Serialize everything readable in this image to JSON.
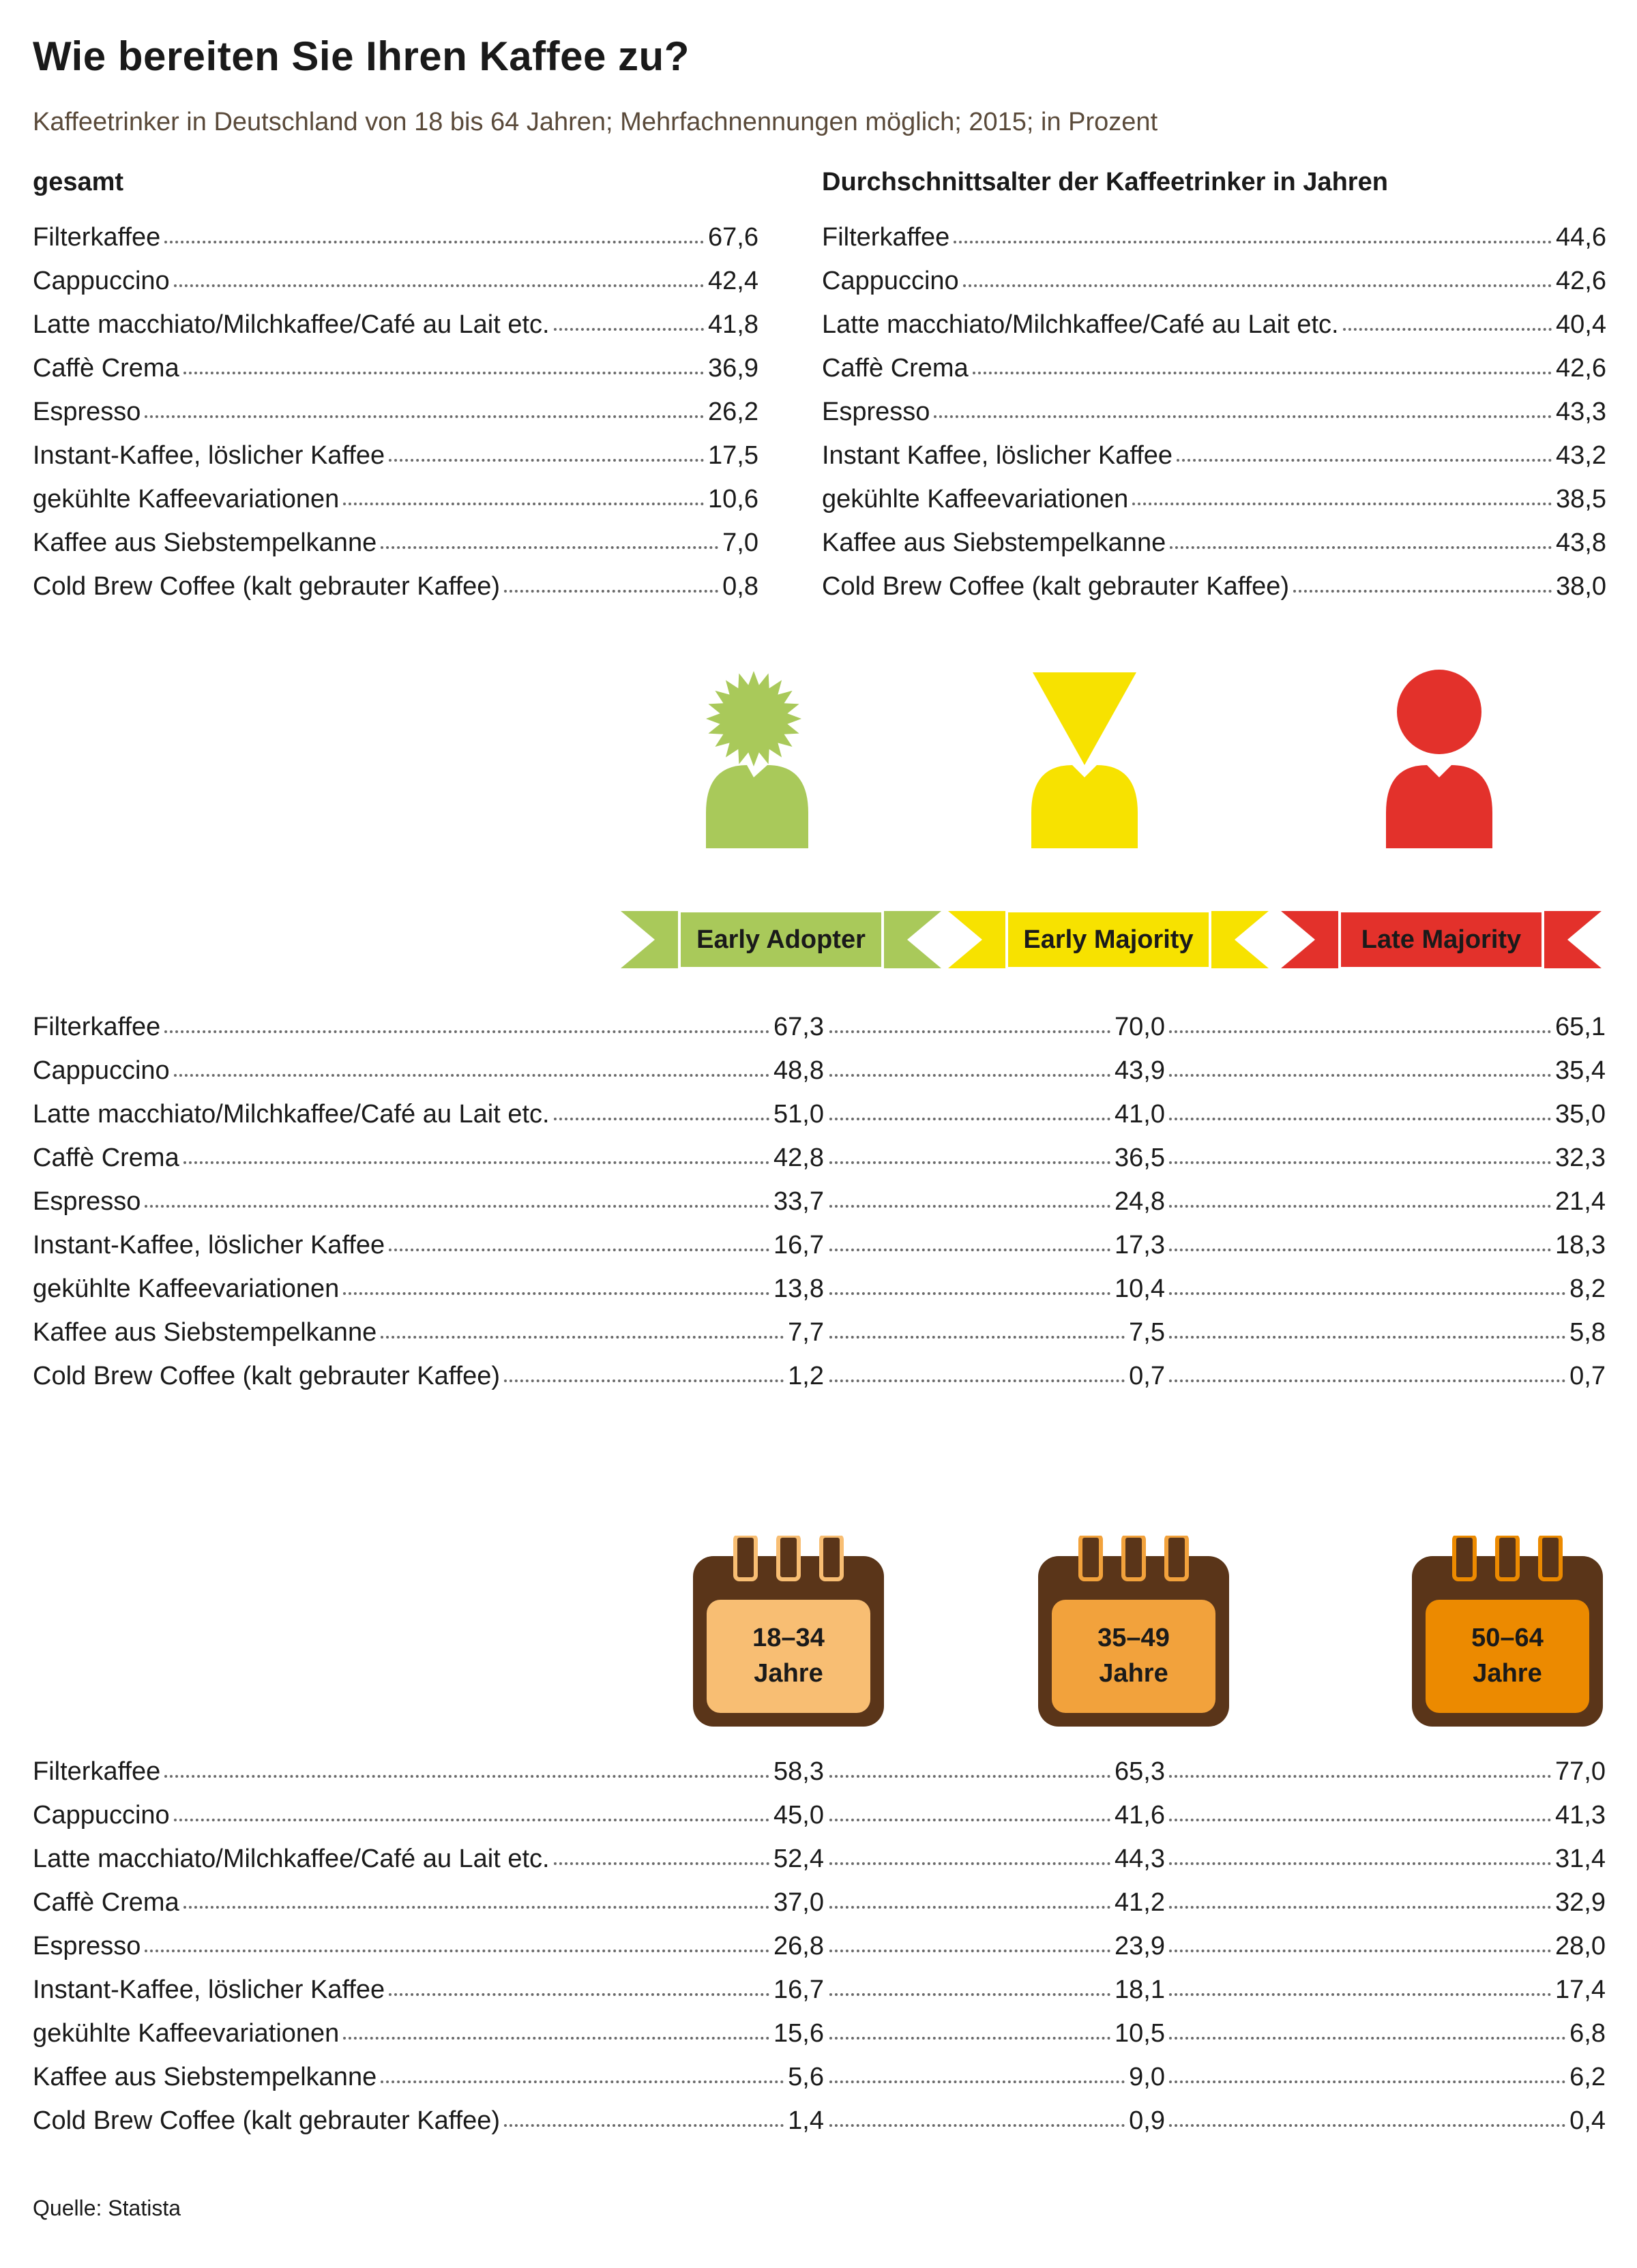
{
  "title": "Wie bereiten Sie Ihren Kaffee zu?",
  "subtitle": "Kaffeetrinker in Deutschland von 18 bis 64 Jahren; Mehrfachnennungen möglich; 2015; in Prozent",
  "left_heading": "gesamt",
  "right_heading": "Durchschnittsalter der Kaffeetrinker in Jahren",
  "labels": [
    "Filterkaffee",
    "Cappuccino",
    "Latte macchiato/Milchkaffee/Café au Lait etc.",
    "Caffè Crema ",
    "Espresso",
    "Instant-Kaffee, löslicher Kaffee",
    "gekühlte Kaffeevariationen",
    "Kaffee aus Siebstempelkanne",
    "Cold Brew Coffee (kalt gebrauter Kaffee)"
  ],
  "labels_right": [
    "Filterkaffee",
    "Cappuccino",
    "Latte macchiato/Milchkaffee/Café au Lait etc.",
    "Caffè Crema ",
    "Espresso",
    "Instant Kaffee, löslicher Kaffee",
    "gekühlte Kaffeevariationen",
    "Kaffee aus Siebstempelkanne",
    "Cold Brew Coffee (kalt gebrauter Kaffee)"
  ],
  "gesamt": [
    "67,6",
    "42,4",
    "41,8",
    "36,9",
    "26,2",
    "17,5",
    "10,6",
    "7,0",
    "0,8"
  ],
  "durchschnittsalter": [
    "44,6",
    "42,6",
    "40,4",
    "42,6",
    "43,3",
    "43,2",
    "38,5",
    "43,8",
    "38,0"
  ],
  "segments": {
    "early_adopter": {
      "label": "Early Adopter",
      "color": "#a9c95a",
      "values": [
        "67,3",
        "48,8",
        "51,0",
        "42,8",
        "33,7",
        "16,7",
        "13,8",
        "7,7",
        "1,2"
      ]
    },
    "early_majority": {
      "label": "Early Majority",
      "color": "#f7e200",
      "values": [
        "70,0",
        "43,9",
        "41,0",
        "36,5",
        "24,8",
        "17,3",
        "10,4",
        "7,5",
        "0,7"
      ]
    },
    "late_majority": {
      "label": "Late Majority",
      "color": "#e3312b",
      "values": [
        "65,1",
        "35,4",
        "35,0",
        "32,3",
        "21,4",
        "18,3",
        "8,2",
        "5,8",
        "0,7"
      ]
    }
  },
  "age_groups": {
    "a18_34": {
      "label_line1": "18–34",
      "label_line2": "Jahre",
      "color": "#f8be73",
      "values": [
        "58,3",
        "45,0",
        "52,4",
        "37,0",
        "26,8",
        "16,7",
        "15,6",
        "5,6",
        "1,4"
      ]
    },
    "a35_49": {
      "label_line1": "35–49",
      "label_line2": "Jahre",
      "color": "#f2a23c",
      "values": [
        "65,3",
        "41,6",
        "44,3",
        "41,2",
        "23,9",
        "18,1",
        "10,5",
        "9,0",
        "0,9"
      ]
    },
    "a50_64": {
      "label_line1": "50–64",
      "label_line2": "Jahre",
      "color": "#ec8a00",
      "values": [
        "77,0",
        "41,3",
        "31,4",
        "32,9",
        "28,0",
        "17,4",
        "6,8",
        "6,2",
        "0,4"
      ]
    }
  },
  "calendar_color": "#5a3519",
  "source": "Quelle: Statista"
}
